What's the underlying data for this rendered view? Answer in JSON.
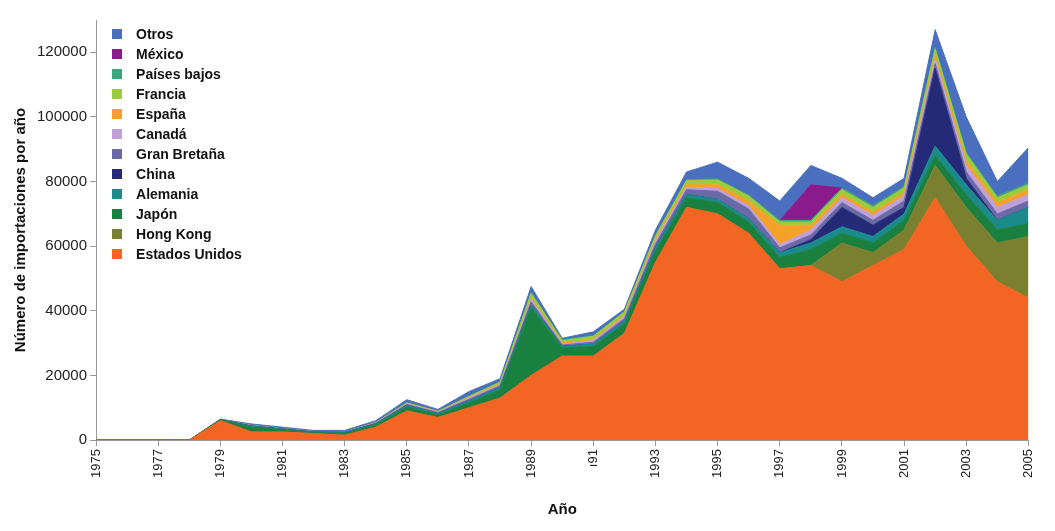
{
  "chart_data": {
    "type": "area",
    "xlabel": "Año",
    "ylabel": "Número de importaciones por año",
    "stacked": true,
    "legend": "top left",
    "x": [
      1975,
      1976,
      1977,
      1978,
      1979,
      1980,
      1981,
      1982,
      1983,
      1984,
      1985,
      1986,
      1987,
      1988,
      1989,
      1990,
      1991,
      1992,
      1993,
      1994,
      1995,
      1996,
      1997,
      1998,
      1999,
      2000,
      2001,
      2002,
      2003,
      2004,
      2005
    ],
    "xlim": [
      1975,
      2005
    ],
    "xticks": [
      1975,
      1977,
      1979,
      1981,
      1983,
      1985,
      1987,
      1989,
      {
        "value": 1991,
        "label": "ı91"
      },
      1993,
      1995,
      1997,
      1999,
      2001,
      2003,
      2005
    ],
    "ylim": [
      0,
      130000
    ],
    "yticks": [
      0,
      20000,
      40000,
      60000,
      80000,
      100000,
      120000
    ],
    "series": [
      {
        "name": "Estados Unidos",
        "color": "#f26522",
        "values": [
          0,
          0,
          0,
          0,
          6000,
          2500,
          2500,
          2000,
          1500,
          4000,
          9000,
          7000,
          10000,
          13000,
          20000,
          26000,
          26000,
          33000,
          55000,
          72000,
          70000,
          64000,
          53000,
          54000,
          49000,
          54000,
          59000,
          75000,
          60000,
          49000,
          44000
        ]
      },
      {
        "name": "Hong Kong",
        "color": "#7a8030",
        "values": [
          0,
          0,
          0,
          0,
          0,
          0,
          0,
          0,
          0,
          0,
          0,
          0,
          0,
          0,
          0,
          0,
          0,
          0,
          0,
          0,
          0,
          0,
          0,
          0,
          12000,
          4000,
          6000,
          10000,
          12000,
          12000,
          19000
        ]
      },
      {
        "name": "Japón",
        "color": "#1a8040",
        "values": [
          0,
          0,
          0,
          0,
          300,
          1500,
          700,
          300,
          600,
          700,
          1200,
          800,
          1500,
          2500,
          21000,
          2500,
          3000,
          3000,
          3500,
          3000,
          3500,
          3500,
          3500,
          5000,
          3000,
          3000,
          3000,
          3000,
          4000,
          4000,
          4000
        ]
      },
      {
        "name": "Alemania",
        "color": "#1a8a8a",
        "values": [
          0,
          0,
          0,
          0,
          0,
          300,
          200,
          200,
          300,
          300,
          500,
          400,
          600,
          700,
          800,
          500,
          700,
          800,
          1000,
          1000,
          1000,
          1000,
          1500,
          2000,
          2000,
          2000,
          2000,
          3000,
          3000,
          3000,
          5000
        ]
      },
      {
        "name": "China",
        "color": "#252a78",
        "values": [
          0,
          0,
          0,
          0,
          0,
          0,
          0,
          0,
          0,
          0,
          0,
          0,
          0,
          0,
          0,
          0,
          0,
          0,
          0,
          0,
          0,
          0,
          0,
          1000,
          6000,
          3500,
          2000,
          24000,
          2000,
          0,
          0
        ]
      },
      {
        "name": "Gran Bretaña",
        "color": "#6a6aa8",
        "values": [
          0,
          0,
          0,
          0,
          0,
          200,
          100,
          100,
          100,
          200,
          300,
          300,
          500,
          600,
          1000,
          400,
          600,
          800,
          1200,
          1500,
          2500,
          3000,
          1500,
          1500,
          1500,
          1500,
          2000,
          1500,
          2000,
          2000,
          2000
        ]
      },
      {
        "name": "Canadá",
        "color": "#c0a0d8",
        "values": [
          0,
          0,
          0,
          0,
          0,
          0,
          0,
          0,
          0,
          100,
          200,
          200,
          400,
          300,
          800,
          300,
          500,
          600,
          800,
          800,
          800,
          1000,
          1000,
          1500,
          1500,
          1500,
          1500,
          1500,
          2000,
          2000,
          2000
        ]
      },
      {
        "name": "España",
        "color": "#f4a12a",
        "values": [
          0,
          0,
          0,
          0,
          0,
          0,
          0,
          0,
          0,
          0,
          100,
          100,
          200,
          200,
          300,
          300,
          300,
          400,
          600,
          800,
          1200,
          1500,
          6000,
          1500,
          1000,
          1000,
          1000,
          1000,
          1500,
          1500,
          1500
        ]
      },
      {
        "name": "Francia",
        "color": "#9ccc3c",
        "values": [
          0,
          0,
          0,
          0,
          0,
          0,
          0,
          0,
          0,
          100,
          200,
          100,
          300,
          600,
          1500,
          800,
          1000,
          1000,
          1000,
          1200,
          1500,
          1500,
          1000,
          1000,
          1500,
          1500,
          1500,
          2000,
          2000,
          1500,
          1500
        ]
      },
      {
        "name": "Países bajos",
        "color": "#3aa67a",
        "values": [
          0,
          0,
          0,
          0,
          0,
          0,
          0,
          0,
          0,
          0,
          100,
          0,
          100,
          100,
          200,
          200,
          200,
          200,
          300,
          300,
          300,
          300,
          500,
          500,
          500,
          500,
          500,
          500,
          500,
          500,
          500
        ]
      },
      {
        "name": "México",
        "color": "#8b1a8b",
        "values": [
          null,
          null,
          null,
          null,
          null,
          null,
          null,
          null,
          null,
          null,
          null,
          null,
          null,
          null,
          null,
          null,
          null,
          null,
          null,
          null,
          null,
          null,
          0,
          11000,
          0,
          null,
          null,
          null,
          null,
          null,
          null
        ]
      },
      {
        "name": "Otros",
        "color": "#4a6fbf",
        "values": [
          0,
          0,
          0,
          0,
          200,
          500,
          500,
          400,
          500,
          600,
          900,
          600,
          1400,
          1000,
          1900,
          500,
          1200,
          700,
          1600,
          2400,
          5200,
          5200,
          6000,
          6000,
          3000,
          2500,
          2500,
          5500,
          11000,
          4500,
          11000
        ]
      }
    ]
  }
}
